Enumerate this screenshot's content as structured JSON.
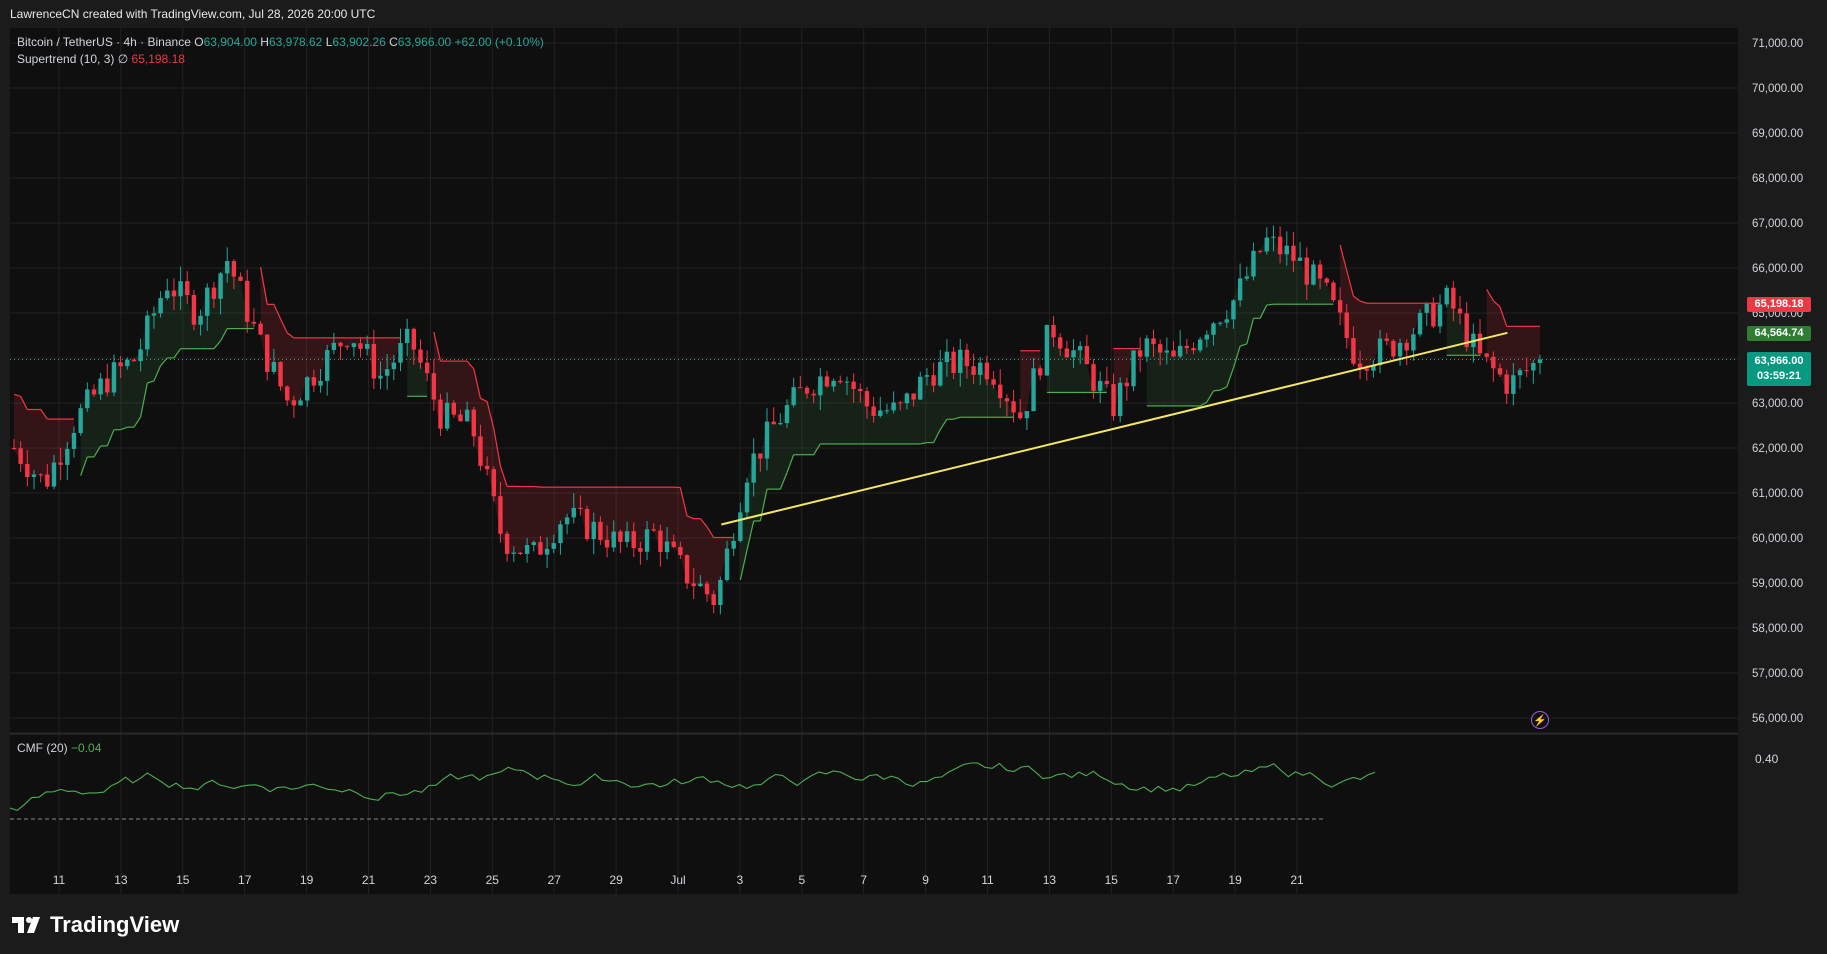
{
  "header": {
    "created_by": "LawrenceCN created with TradingView.com, Jul 28, 2026 20:00 UTC"
  },
  "legend": {
    "symbol": "Bitcoin / TetherUS · 4h · Binance",
    "open_label": "O",
    "open": "63,904.00",
    "high_label": "H",
    "high": "63,978.62",
    "low_label": "L",
    "low": "63,902.26",
    "close_label": "C",
    "close": "63,966.00",
    "change": "+62.00 (+0.10%)",
    "indicator_name": "Supertrend (10, 3)",
    "indicator_icon": "∅",
    "indicator_value": "65,198.18"
  },
  "cmf": {
    "name": "CMF (20)",
    "value": "−0.04",
    "axis_label": "0.40"
  },
  "price_tags": {
    "supertrend": "65,198.18",
    "level": "64,564.74",
    "last_price": "63,966.00",
    "countdown": "03:59:21"
  },
  "footer": {
    "brand": "TradingView"
  },
  "icons": {
    "replay": "lightning-icon",
    "brand": "tradingview-logo"
  },
  "colors": {
    "up": "#26a69a",
    "down": "#f23645",
    "trendline": "#f5e663",
    "supertrend_up": "#4caf50",
    "supertrend_down": "#f23645",
    "cmf_line": "#4caf50"
  },
  "chart_data": {
    "type": "candlestick",
    "title": "Bitcoin / TetherUS · 4h · Binance",
    "y_axis_ticks": [
      "71,000.00",
      "70,000.00",
      "69,000.00",
      "68,000.00",
      "67,000.00",
      "66,000.00",
      "65,000.00",
      "64,000.00",
      "63,000.00",
      "62,000.00",
      "61,000.00",
      "60,000.00",
      "59,000.00",
      "58,000.00",
      "57,000.00",
      "56,000.00"
    ],
    "ylim": [
      55800,
      71500
    ],
    "x_axis_ticks": [
      "11",
      "13",
      "15",
      "17",
      "19",
      "21",
      "23",
      "25",
      "27",
      "29",
      "Jul",
      "3",
      "5",
      "7",
      "9",
      "11",
      "13",
      "15",
      "17",
      "19",
      "21"
    ],
    "approx_close_path": [
      [
        0,
        62000
      ],
      [
        1,
        61200
      ],
      [
        2,
        62600
      ],
      [
        3,
        63500
      ],
      [
        4,
        64000
      ],
      [
        5,
        65700
      ],
      [
        6,
        65000
      ],
      [
        7,
        66200
      ],
      [
        8,
        64400
      ],
      [
        9,
        63000
      ],
      [
        10,
        63800
      ],
      [
        11,
        64600
      ],
      [
        12,
        63600
      ],
      [
        13,
        64400
      ],
      [
        14,
        62700
      ],
      [
        15,
        62500
      ],
      [
        16,
        60000
      ],
      [
        17,
        59600
      ],
      [
        18,
        60500
      ],
      [
        19,
        60200
      ],
      [
        20,
        59800
      ],
      [
        21,
        60100
      ],
      [
        22,
        59200
      ],
      [
        23,
        58600
      ],
      [
        24,
        61500
      ],
      [
        25,
        62600
      ],
      [
        26,
        63400
      ],
      [
        27,
        63800
      ],
      [
        28,
        62900
      ],
      [
        29,
        62800
      ],
      [
        30,
        63700
      ],
      [
        31,
        63900
      ],
      [
        32,
        63800
      ],
      [
        33,
        62700
      ],
      [
        34,
        64700
      ],
      [
        35,
        63900
      ],
      [
        36,
        62900
      ],
      [
        37,
        64300
      ],
      [
        38,
        63900
      ],
      [
        39,
        64700
      ],
      [
        40,
        65300
      ],
      [
        41,
        66600
      ],
      [
        42,
        66200
      ],
      [
        43,
        65400
      ],
      [
        44,
        64000
      ],
      [
        45,
        64200
      ],
      [
        46,
        64700
      ],
      [
        47,
        65300
      ],
      [
        48,
        64000
      ],
      [
        49,
        63400
      ],
      [
        50,
        63966
      ]
    ],
    "supertrend_value": 65198.18,
    "trendline": {
      "from": [
        "Jul 2",
        60300
      ],
      "to": [
        "Jul 27",
        64560
      ]
    },
    "cmf_value": -0.04
  }
}
